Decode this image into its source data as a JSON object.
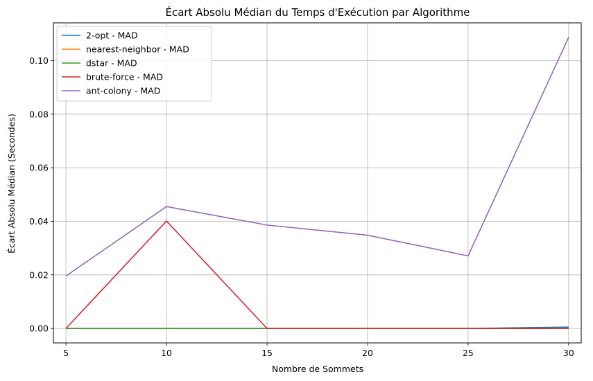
{
  "chart_data": {
    "type": "line",
    "title": "Écart Absolu Médian du Temps d'Exécution par Algorithme",
    "xlabel": "Nombre de Sommets",
    "ylabel": "Écart Absolu Médian (Secondes)",
    "x": [
      5,
      10,
      15,
      20,
      25,
      30
    ],
    "x_ticks": [
      5,
      10,
      15,
      20,
      25,
      30
    ],
    "y_ticks": [
      0.0,
      0.02,
      0.04,
      0.06,
      0.08,
      0.1
    ],
    "y_tick_labels": [
      "0.00",
      "0.02",
      "0.04",
      "0.06",
      "0.08",
      "0.10"
    ],
    "xlim": [
      4.375,
      30.625
    ],
    "ylim": [
      -0.0054,
      0.1141
    ],
    "grid": true,
    "legend_position": "top-left",
    "series": [
      {
        "name": "2-opt - MAD",
        "color": "#1f77b4",
        "values": [
          0.0,
          0.0,
          0.0,
          0.0,
          0.0,
          0.0005
        ]
      },
      {
        "name": "nearest-neighbor - MAD",
        "color": "#ff7f0e",
        "values": [
          0.0,
          0.0,
          0.0,
          0.0,
          0.0,
          0.0
        ]
      },
      {
        "name": "dstar - MAD",
        "color": "#2ca02c",
        "values": [
          0.0,
          0.0,
          0.0,
          0.0,
          0.0,
          0.0
        ]
      },
      {
        "name": "brute-force - MAD",
        "color": "#d62728",
        "values": [
          0.0,
          0.0401,
          0.0,
          0.0,
          0.0,
          0.0
        ]
      },
      {
        "name": "ant-colony - MAD",
        "color": "#9467bd",
        "values": [
          0.0196,
          0.0455,
          0.0386,
          0.0348,
          0.0271,
          0.1087
        ]
      }
    ]
  }
}
